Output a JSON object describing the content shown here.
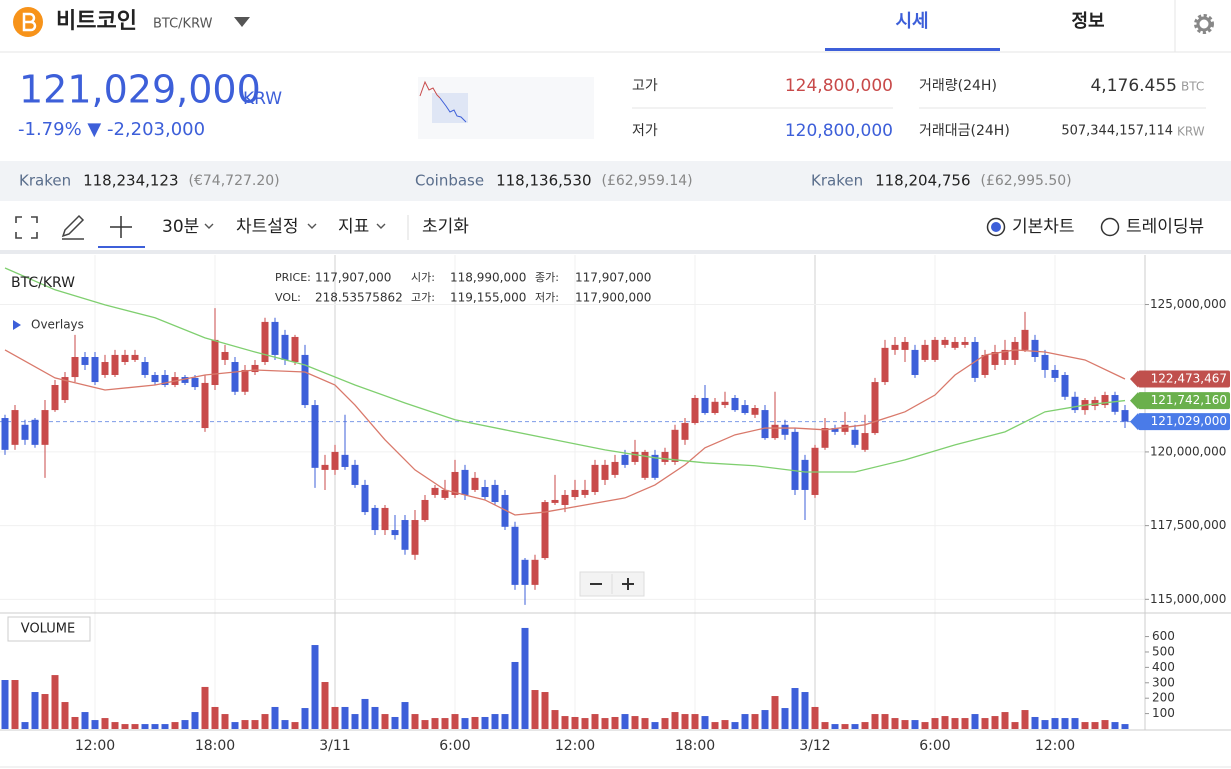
{
  "header": {
    "coin": "비트코인",
    "pair": "BTC/KRW",
    "tabs": [
      "시세",
      "정보"
    ]
  },
  "ticker": {
    "price": "121,029,000",
    "currency": "KRW",
    "change": "-1.79% ▼ -2,203,000",
    "high_label": "고가",
    "high": "124,800,000",
    "low_label": "저가",
    "low": "120,800,000",
    "volume_label": "거래량(24H)",
    "volume": "4,176.455",
    "volume_unit": "BTC",
    "amount_label": "거래대금(24H)",
    "amount": "507,344,157,114",
    "amount_unit": "KRW"
  },
  "exchanges": [
    {
      "name": "Kraken",
      "price": "118,234,123",
      "fx": "(€74,727.20)"
    },
    {
      "name": "Coinbase",
      "price": "118,136,530",
      "fx": "(£62,959.14)"
    },
    {
      "name": "Kraken",
      "price": "118,204,756",
      "fx": "(£62,995.50)"
    }
  ],
  "toolbar": {
    "interval": "30분",
    "settings": "차트설정",
    "indicators": "지표",
    "reset": "초기화",
    "modes": [
      "기본차트",
      "트레이딩뷰"
    ]
  },
  "chart_info": {
    "pair": "BTC/KRW",
    "overlays": "Overlays",
    "volume_title": "VOLUME",
    "fields": [
      {
        "label": "PRICE:",
        "value": "117,907,000"
      },
      {
        "label": "시가:",
        "value": "118,990,000"
      },
      {
        "label": "종가:",
        "value": "117,907,000"
      },
      {
        "label": "VOL:",
        "value": "218.53575862"
      },
      {
        "label": "고가:",
        "value": "119,155,000"
      },
      {
        "label": "저가:",
        "value": "117,900,000"
      }
    ]
  },
  "chart_data": {
    "type": "candlestick",
    "up_color": "#c84a4a",
    "down_color": "#3d5fd9",
    "categories": [
      null,
      null,
      null,
      null,
      null,
      null,
      null,
      null,
      null,
      "12:00",
      null,
      null,
      null,
      null,
      null,
      null,
      null,
      null,
      null,
      null,
      null,
      "18:00",
      null,
      null,
      null,
      null,
      null,
      null,
      null,
      null,
      null,
      null,
      null,
      "3/11",
      null,
      null,
      null,
      null,
      null,
      null,
      null,
      null,
      null,
      null,
      null,
      "6:00",
      null,
      null,
      null,
      null,
      null,
      null,
      null,
      null,
      null,
      null,
      null,
      "12:00",
      null,
      null,
      null,
      null,
      null,
      null,
      null,
      null,
      null,
      null,
      null,
      "18:00",
      null,
      null,
      null,
      null,
      null,
      null,
      null,
      null,
      null,
      null,
      null,
      "3/12",
      null,
      null,
      null,
      null,
      null,
      null,
      null,
      null,
      null,
      null,
      null,
      "6:00",
      null,
      null,
      null,
      null,
      null,
      null,
      null,
      null,
      null,
      null,
      null,
      "12:00",
      null,
      null,
      null,
      null,
      null,
      null,
      null
    ],
    "open": [
      121150000,
      120240000,
      120920000,
      121090000,
      120240000,
      121420000,
      121760000,
      122540000,
      123220000,
      123220000,
      122610000,
      122610000,
      123050000,
      123120000,
      123050000,
      122610000,
      122610000,
      122270000,
      122540000,
      122510000,
      120810000,
      122270000,
      123120000,
      123050000,
      122040000,
      122710000,
      123050000,
      124410000,
      123970000,
      123050000,
      123290000,
      121590000,
      119390000,
      119390000,
      119900000,
      119560000,
      118880000,
      118100000,
      117350000,
      117350000,
      117690000,
      116510000,
      117690000,
      118540000,
      118440000,
      118540000,
      119390000,
      118710000,
      118810000,
      118880000,
      118540000,
      117460000,
      116340000,
      115490000,
      116400000,
      118270000,
      118200000,
      118470000,
      118540000,
      118640000,
      119050000,
      119220000,
      119900000,
      119660000,
      119120000,
      119900000,
      119660000,
      119660000,
      120410000,
      120980000,
      121830000,
      121320000,
      121590000,
      121830000,
      121590000,
      121260000,
      121420000,
      120470000,
      120920000,
      120680000,
      119730000,
      118540000,
      120140000,
      120810000,
      120680000,
      120750000,
      120070000,
      120640000,
      122370000,
      123460000,
      123460000,
      123460000,
      123120000,
      123120000,
      123630000,
      123530000,
      123630000,
      123730000,
      122610000,
      122950000,
      123120000,
      123120000,
      123460000,
      123800000,
      123290000,
      122780000,
      122610000,
      121870000,
      121420000,
      121560000,
      121590000,
      121930000,
      121420000
    ],
    "high": [
      121260000,
      121590000,
      121090000,
      121150000,
      121760000,
      122440000,
      122710000,
      123970000,
      123390000,
      123390000,
      123290000,
      123460000,
      123460000,
      123460000,
      123220000,
      122710000,
      122780000,
      122710000,
      122610000,
      122610000,
      122610000,
      124880000,
      123630000,
      123220000,
      122950000,
      123120000,
      124550000,
      124550000,
      124140000,
      123970000,
      123630000,
      121760000,
      119900000,
      120240000,
      121260000,
      119730000,
      119050000,
      118200000,
      118200000,
      117860000,
      117860000,
      118030000,
      118540000,
      118880000,
      119050000,
      119730000,
      119560000,
      119320000,
      119050000,
      119050000,
      118710000,
      117630000,
      116400000,
      116510000,
      118370000,
      119220000,
      118710000,
      119050000,
      119050000,
      119730000,
      119730000,
      119900000,
      120070000,
      120410000,
      120070000,
      120070000,
      120140000,
      120920000,
      121150000,
      121930000,
      122270000,
      121830000,
      122040000,
      121930000,
      121760000,
      121590000,
      121590000,
      122040000,
      121090000,
      120810000,
      119900000,
      120240000,
      121150000,
      120920000,
      121360000,
      120920000,
      121260000,
      122510000,
      123800000,
      123900000,
      123900000,
      123630000,
      123800000,
      123900000,
      123900000,
      123900000,
      123900000,
      123900000,
      123460000,
      123630000,
      123800000,
      123900000,
      124750000,
      123970000,
      123460000,
      122950000,
      122710000,
      122040000,
      121830000,
      121870000,
      122040000,
      122040000,
      121590000
    ],
    "low": [
      119900000,
      120070000,
      120240000,
      120140000,
      119120000,
      121360000,
      121660000,
      122370000,
      122780000,
      122270000,
      122510000,
      122540000,
      122950000,
      123050000,
      122510000,
      122270000,
      122200000,
      122200000,
      122270000,
      122100000,
      120680000,
      122100000,
      122950000,
      121930000,
      121930000,
      122610000,
      122950000,
      123120000,
      122950000,
      122950000,
      121490000,
      118780000,
      118710000,
      119220000,
      119390000,
      118780000,
      117860000,
      117180000,
      117180000,
      117020000,
      116510000,
      116340000,
      117630000,
      118440000,
      118370000,
      118440000,
      118370000,
      118640000,
      118370000,
      118200000,
      117350000,
      115320000,
      114810000,
      115320000,
      116340000,
      118200000,
      117960000,
      118370000,
      118440000,
      118540000,
      118880000,
      119120000,
      119460000,
      119560000,
      119050000,
      119050000,
      119560000,
      119560000,
      120240000,
      120920000,
      121260000,
      121260000,
      121490000,
      121360000,
      121260000,
      121150000,
      120410000,
      120410000,
      120410000,
      118540000,
      117690000,
      118440000,
      120070000,
      120580000,
      120580000,
      120140000,
      120000000,
      120580000,
      122270000,
      123290000,
      123050000,
      122510000,
      123050000,
      123050000,
      123530000,
      123460000,
      123530000,
      122370000,
      122510000,
      122780000,
      122950000,
      122950000,
      123390000,
      123050000,
      122510000,
      122370000,
      121760000,
      121320000,
      121260000,
      121420000,
      121490000,
      121260000,
      120810000
    ],
    "close": [
      120070000,
      121420000,
      120410000,
      120240000,
      121420000,
      122270000,
      122540000,
      123220000,
      122950000,
      122370000,
      123050000,
      123290000,
      123290000,
      123290000,
      122610000,
      122370000,
      122270000,
      122540000,
      122340000,
      122200000,
      122340000,
      123800000,
      123390000,
      122040000,
      122780000,
      122950000,
      124410000,
      123290000,
      123120000,
      123900000,
      121590000,
      119460000,
      119560000,
      120000000,
      119490000,
      118880000,
      117960000,
      117350000,
      118100000,
      117180000,
      116680000,
      117690000,
      118370000,
      118780000,
      118710000,
      119320000,
      118540000,
      119120000,
      118470000,
      118300000,
      117460000,
      115490000,
      115490000,
      116340000,
      118300000,
      118370000,
      118540000,
      118710000,
      118710000,
      119560000,
      119560000,
      119660000,
      119560000,
      120000000,
      120000000,
      119120000,
      120000000,
      120750000,
      120980000,
      121830000,
      121320000,
      121700000,
      121700000,
      121420000,
      121320000,
      121490000,
      120470000,
      120920000,
      120580000,
      118710000,
      118710000,
      120140000,
      120810000,
      120680000,
      120920000,
      120240000,
      120640000,
      122370000,
      123530000,
      123630000,
      123730000,
      122610000,
      123630000,
      123800000,
      123800000,
      123730000,
      123730000,
      122510000,
      123290000,
      123390000,
      123460000,
      123730000,
      124140000,
      123220000,
      122780000,
      122510000,
      121870000,
      121420000,
      121760000,
      121760000,
      121930000,
      121360000,
      121029000
    ],
    "volume": [
      318,
      318,
      45,
      240,
      227,
      350,
      175,
      78,
      110,
      58,
      71,
      45,
      32,
      32,
      32,
      32,
      32,
      45,
      58,
      110,
      273,
      143,
      97,
      45,
      58,
      58,
      97,
      143,
      58,
      45,
      136,
      545,
      305,
      143,
      143,
      97,
      195,
      143,
      97,
      78,
      175,
      97,
      58,
      71,
      71,
      97,
      71,
      78,
      78,
      97,
      97,
      435,
      656,
      253,
      240,
      123,
      84,
      78,
      71,
      97,
      71,
      78,
      97,
      84,
      71,
      45,
      71,
      110,
      97,
      97,
      84,
      45,
      58,
      45,
      97,
      97,
      123,
      214,
      136,
      266,
      240,
      143,
      45,
      32,
      32,
      32,
      45,
      97,
      97,
      71,
      58,
      58,
      45,
      71,
      84,
      71,
      71,
      97,
      71,
      84,
      110,
      45,
      123,
      78,
      58,
      71,
      71,
      71,
      45,
      45,
      58,
      45,
      32
    ],
    "ylim": [
      114570000,
      126680000
    ],
    "yticks": [
      {
        "value": 115000000,
        "label": "115,000,000"
      },
      {
        "value": 117500000,
        "label": "117,500,000"
      },
      {
        "value": 120000000,
        "label": "120,000,000"
      },
      {
        "value": 125000000,
        "label": "125,000,000"
      }
    ],
    "volume_ylim": [
      0,
      740
    ],
    "volume_ticks": [
      100,
      200,
      300,
      400,
      500,
      600
    ],
    "ma": [
      {
        "color": "#d9796b",
        "x": [
          0,
          5,
          10,
          15,
          20,
          25,
          30,
          33,
          35,
          38,
          41,
          44,
          48,
          51,
          54,
          58,
          62,
          65,
          68,
          70,
          73,
          76,
          79,
          82,
          86,
          90,
          93,
          95,
          98,
          101,
          104,
          108,
          112
        ],
        "values": [
          123460000,
          122510000,
          122100000,
          122270000,
          122610000,
          122780000,
          122710000,
          122270000,
          121590000,
          120410000,
          119390000,
          118710000,
          118370000,
          117860000,
          117960000,
          118200000,
          118440000,
          118880000,
          119560000,
          120140000,
          120580000,
          120810000,
          120810000,
          120750000,
          120920000,
          121360000,
          121930000,
          122610000,
          123290000,
          123460000,
          123390000,
          123120000,
          122473467
        ]
      },
      {
        "color": "#7fcf6f",
        "x": [
          0,
          5,
          10,
          15,
          20,
          25,
          30,
          35,
          40,
          45,
          50,
          55,
          60,
          65,
          70,
          75,
          80,
          85,
          90,
          95,
          100,
          104,
          108,
          112
        ],
        "values": [
          126240000,
          125500000,
          124990000,
          124550000,
          123870000,
          123390000,
          122950000,
          122270000,
          121660000,
          121090000,
          120750000,
          120410000,
          120070000,
          119800000,
          119630000,
          119530000,
          119320000,
          119320000,
          119730000,
          120240000,
          120680000,
          121360000,
          121590000,
          121742160
        ]
      }
    ],
    "price_tags": [
      {
        "value": 122473467,
        "label": "122,473,467",
        "color": "#c0504d"
      },
      {
        "value": 121742160,
        "label": "121,742,160",
        "color": "#6ab04c"
      },
      {
        "value": 121029000,
        "label": "121,029,000",
        "color": "#4a7be8"
      }
    ]
  }
}
